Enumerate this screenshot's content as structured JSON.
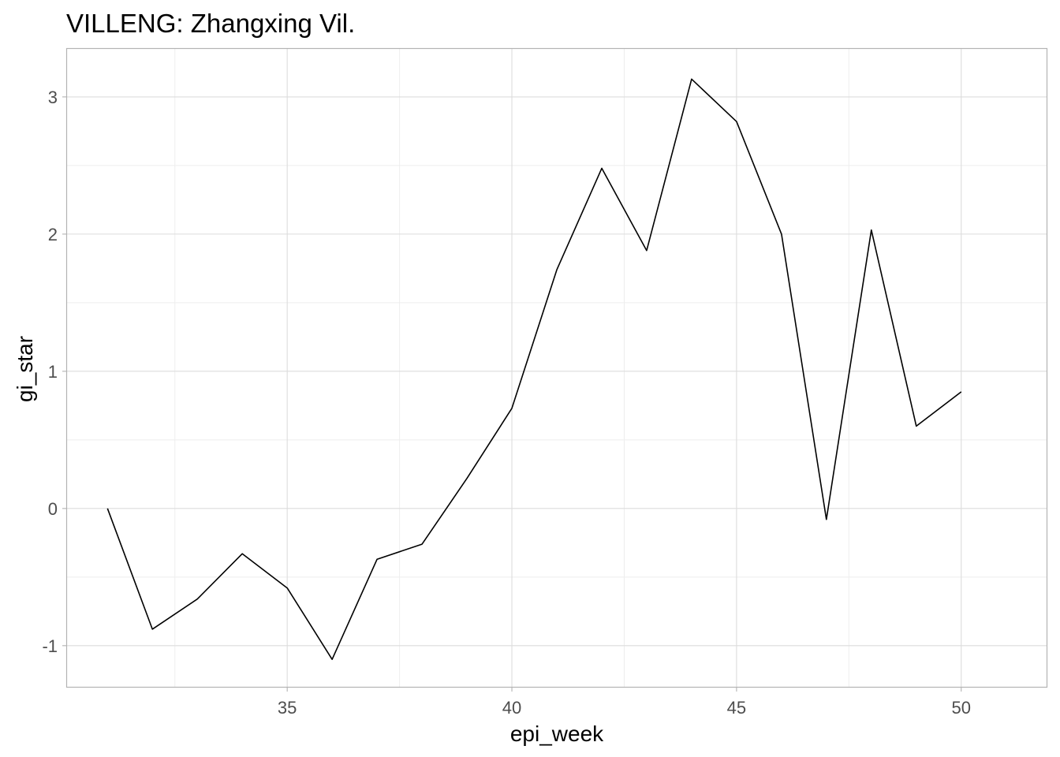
{
  "chart_data": {
    "type": "line",
    "title": "VILLENG: Zhangxing Vil.",
    "xlabel": "epi_week",
    "ylabel": "gi_star",
    "xlim": [
      30.1,
      51.9
    ],
    "ylim": [
      -1.3,
      3.35
    ],
    "x_ticks": [
      35,
      40,
      45,
      50
    ],
    "y_ticks": [
      -1,
      0,
      1,
      2,
      3
    ],
    "x_tick_labels": [
      "35",
      "40",
      "45",
      "50"
    ],
    "y_tick_labels": [
      "-1",
      "0",
      "1",
      "2",
      "3"
    ],
    "grid": true,
    "line_color": "#000000",
    "x": [
      31,
      32,
      33,
      34,
      35,
      36,
      37,
      38,
      39,
      40,
      41,
      42,
      43,
      44,
      45,
      46,
      47,
      48,
      49,
      50
    ],
    "values": [
      0.0,
      -0.88,
      -0.66,
      -0.33,
      -0.58,
      -1.1,
      -0.37,
      -0.26,
      0.22,
      0.73,
      1.74,
      2.48,
      1.88,
      3.13,
      2.82,
      2.0,
      -0.08,
      2.03,
      0.6,
      0.85
    ]
  }
}
